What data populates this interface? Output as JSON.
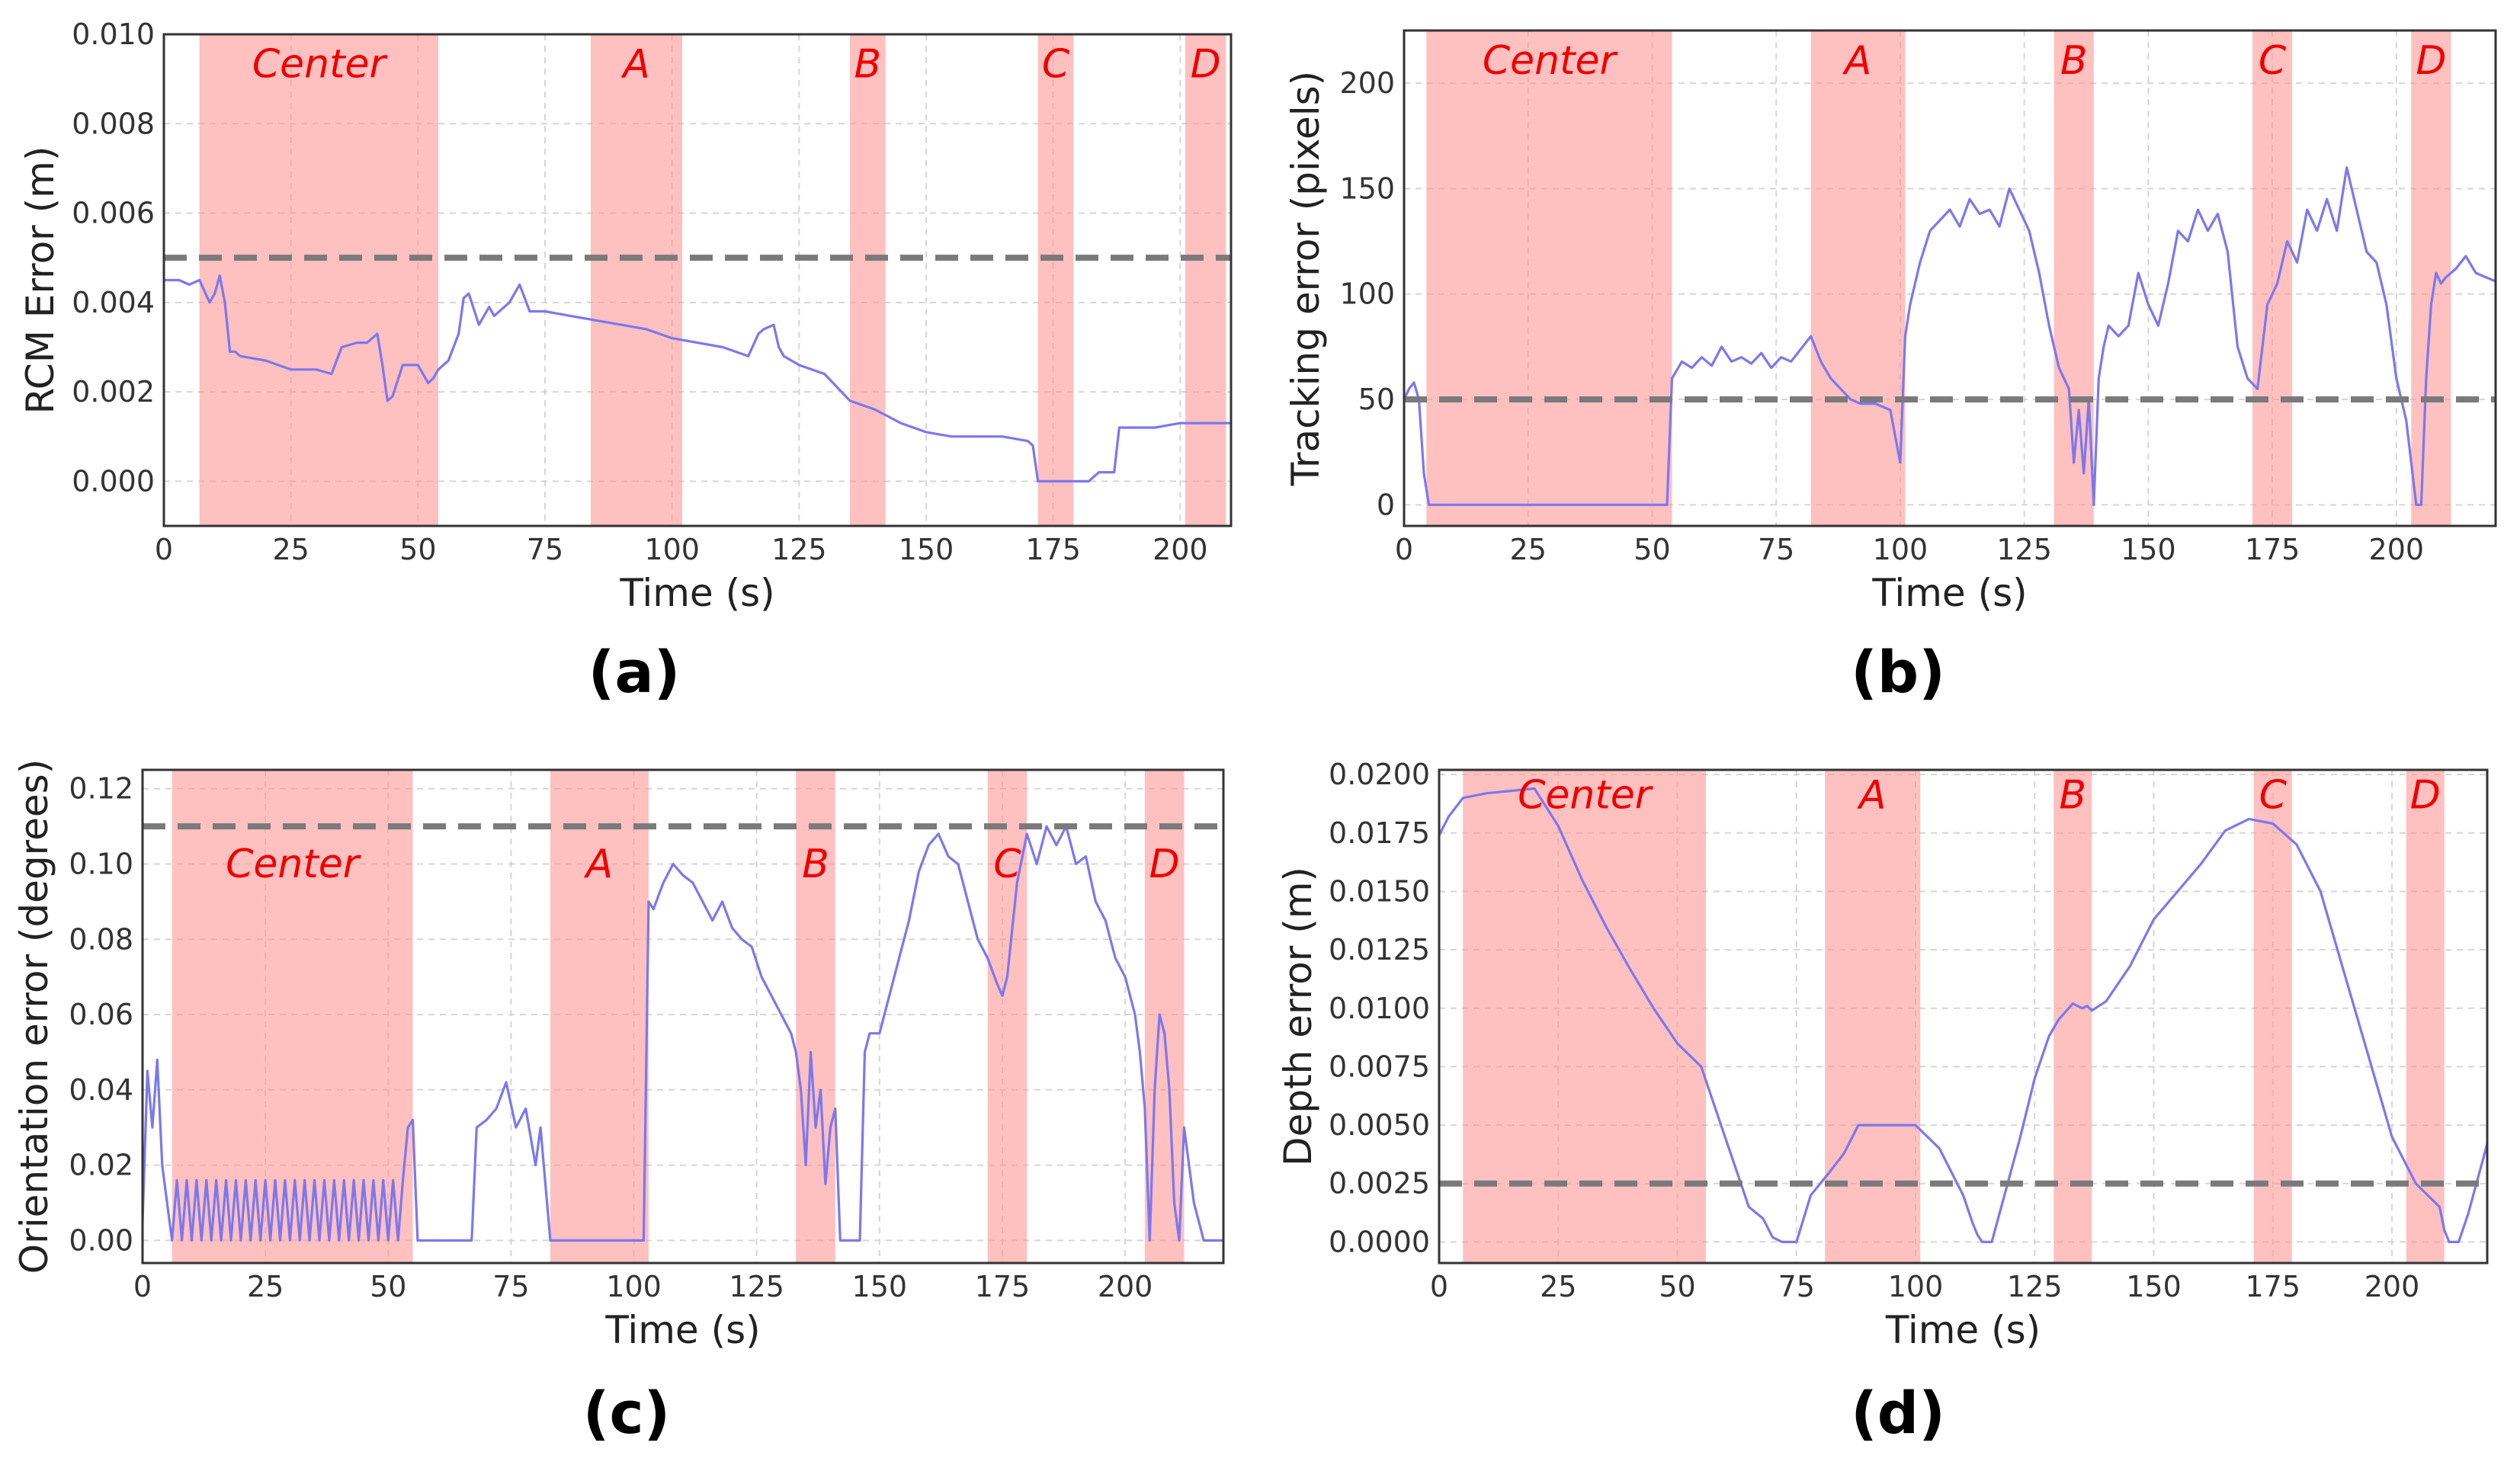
{
  "chart_data": [
    {
      "type": "line",
      "panel_label": "(a)",
      "xlabel": "Time (s)",
      "ylabel": "RCM Error (m)",
      "xlim": [
        0,
        210
      ],
      "ylim": [
        -0.001,
        0.01
      ],
      "xticks": [
        0,
        25,
        50,
        75,
        100,
        125,
        150,
        175,
        200
      ],
      "yticks": [
        0.0,
        0.002,
        0.004,
        0.006,
        0.008,
        0.01
      ],
      "tick_decimals": 3,
      "grid": true,
      "threshold": 0.005,
      "regions": [
        {
          "label": "Center",
          "start": 7,
          "end": 54
        },
        {
          "label": "A",
          "start": 84,
          "end": 102
        },
        {
          "label": "B",
          "start": 135,
          "end": 142
        },
        {
          "label": "C",
          "start": 172,
          "end": 179
        },
        {
          "label": "D",
          "start": 201,
          "end": 209
        }
      ],
      "series": [
        {
          "x": [
            0,
            3,
            5,
            7,
            9,
            10,
            11,
            12,
            13,
            14,
            15,
            20,
            25,
            30,
            33,
            35,
            38,
            40,
            42,
            43,
            44,
            45,
            47,
            50,
            52,
            53,
            54,
            56,
            58,
            59,
            60,
            62,
            63,
            64,
            65,
            68,
            70,
            72,
            75,
            80,
            85,
            90,
            95,
            100,
            105,
            110,
            115,
            117,
            118,
            120,
            121,
            122,
            125,
            130,
            135,
            140,
            145,
            150,
            155,
            160,
            165,
            170,
            171,
            172,
            175,
            178,
            179,
            182,
            184,
            186,
            187,
            188,
            195,
            200,
            205,
            210
          ],
          "y": [
            0.0045,
            0.0045,
            0.0044,
            0.0045,
            0.004,
            0.0042,
            0.0046,
            0.004,
            0.0029,
            0.0029,
            0.0028,
            0.0027,
            0.0025,
            0.0025,
            0.0024,
            0.003,
            0.0031,
            0.0031,
            0.0033,
            0.0026,
            0.0018,
            0.0019,
            0.0026,
            0.0026,
            0.0022,
            0.0023,
            0.0025,
            0.0027,
            0.0033,
            0.0041,
            0.0042,
            0.0035,
            0.0037,
            0.0039,
            0.0037,
            0.004,
            0.0044,
            0.0038,
            0.0038,
            0.0037,
            0.0036,
            0.0035,
            0.0034,
            0.0032,
            0.0031,
            0.003,
            0.0028,
            0.0033,
            0.0034,
            0.0035,
            0.003,
            0.0028,
            0.0026,
            0.0024,
            0.0018,
            0.0016,
            0.0013,
            0.0011,
            0.001,
            0.001,
            0.001,
            0.0009,
            0.0008,
            0.0,
            0.0,
            0.0,
            0.0,
            0.0,
            0.0002,
            0.0002,
            0.0002,
            0.0012,
            0.0012,
            0.0013,
            0.0013,
            0.0013
          ]
        }
      ]
    },
    {
      "type": "line",
      "panel_label": "(b)",
      "xlabel": "Time (s)",
      "ylabel": "Tracking error (pixels)",
      "xlim": [
        0,
        220
      ],
      "ylim": [
        -10,
        225
      ],
      "xticks": [
        0,
        25,
        50,
        75,
        100,
        125,
        150,
        175,
        200
      ],
      "yticks": [
        0,
        50,
        100,
        150,
        200
      ],
      "tick_decimals": 0,
      "grid": true,
      "threshold": 50,
      "regions": [
        {
          "label": "Center",
          "start": 4.5,
          "end": 54
        },
        {
          "label": "A",
          "start": 82,
          "end": 101
        },
        {
          "label": "B",
          "start": 131,
          "end": 139
        },
        {
          "label": "C",
          "start": 171,
          "end": 179
        },
        {
          "label": "D",
          "start": 203,
          "end": 211
        }
      ],
      "series": [
        {
          "x": [
            0,
            1,
            2,
            3,
            4,
            5,
            10,
            20,
            30,
            40,
            50,
            53,
            54,
            56,
            58,
            60,
            62,
            64,
            66,
            68,
            70,
            72,
            74,
            76,
            78,
            80,
            82,
            84,
            86,
            88,
            90,
            92,
            95,
            98,
            100,
            101,
            102,
            104,
            106,
            108,
            110,
            112,
            114,
            116,
            118,
            120,
            122,
            124,
            126,
            128,
            130,
            132,
            134,
            135,
            136,
            137,
            138,
            139,
            140,
            141,
            142,
            144,
            146,
            148,
            150,
            152,
            154,
            156,
            158,
            160,
            162,
            164,
            166,
            168,
            170,
            172,
            174,
            176,
            178,
            180,
            182,
            184,
            186,
            188,
            190,
            192,
            194,
            196,
            198,
            200,
            202,
            203,
            204,
            205,
            206,
            207,
            208,
            209,
            210,
            212,
            214,
            216,
            218,
            220
          ],
          "y": [
            50,
            55,
            58,
            50,
            15,
            0,
            0,
            0,
            0,
            0,
            0,
            0,
            60,
            68,
            65,
            70,
            66,
            75,
            68,
            70,
            67,
            72,
            65,
            70,
            68,
            74,
            80,
            68,
            60,
            55,
            50,
            48,
            48,
            45,
            20,
            80,
            95,
            115,
            130,
            135,
            140,
            132,
            145,
            138,
            140,
            132,
            150,
            140,
            130,
            110,
            85,
            65,
            55,
            20,
            45,
            15,
            50,
            0,
            60,
            75,
            85,
            80,
            85,
            110,
            95,
            85,
            105,
            130,
            125,
            140,
            130,
            138,
            120,
            75,
            60,
            55,
            95,
            105,
            125,
            115,
            140,
            130,
            145,
            130,
            160,
            140,
            120,
            115,
            95,
            60,
            40,
            20,
            0,
            0,
            60,
            95,
            110,
            105,
            108,
            112,
            118,
            110,
            108,
            106
          ]
        }
      ]
    },
    {
      "type": "line",
      "panel_label": "(c)",
      "xlabel": "Time (s)",
      "ylabel": "Orientation error (degrees)",
      "xlim": [
        0,
        220
      ],
      "ylim": [
        -0.006,
        0.125
      ],
      "xticks": [
        0,
        25,
        50,
        75,
        100,
        125,
        150,
        175,
        200
      ],
      "yticks": [
        0.0,
        0.02,
        0.04,
        0.06,
        0.08,
        0.1,
        0.12
      ],
      "tick_decimals": 2,
      "grid": true,
      "threshold": 0.11,
      "regions": [
        {
          "label": "Center",
          "start": 6,
          "end": 55
        },
        {
          "label": "A",
          "start": 83,
          "end": 103
        },
        {
          "label": "B",
          "start": 133,
          "end": 141
        },
        {
          "label": "C",
          "start": 172,
          "end": 180
        },
        {
          "label": "D",
          "start": 204,
          "end": 212
        }
      ],
      "series": [
        {
          "x": [
            0,
            1,
            2,
            3,
            4,
            5,
            6,
            7,
            8,
            9,
            10,
            11,
            12,
            13,
            14,
            15,
            16,
            17,
            18,
            19,
            20,
            21,
            22,
            23,
            24,
            25,
            26,
            27,
            28,
            29,
            30,
            31,
            32,
            33,
            34,
            35,
            36,
            37,
            38,
            39,
            40,
            41,
            42,
            43,
            44,
            45,
            46,
            47,
            48,
            49,
            50,
            51,
            52,
            53,
            54,
            55,
            56,
            58,
            62,
            67,
            68,
            70,
            72,
            74,
            76,
            78,
            80,
            81,
            82,
            83,
            85,
            90,
            95,
            100,
            102,
            103,
            104,
            106,
            108,
            110,
            112,
            114,
            116,
            118,
            120,
            122,
            124,
            126,
            128,
            130,
            132,
            133,
            134,
            135,
            136,
            137,
            138,
            139,
            140,
            141,
            142,
            144,
            146,
            147,
            148,
            150,
            152,
            154,
            156,
            158,
            160,
            162,
            164,
            166,
            168,
            170,
            172,
            174,
            175,
            176,
            178,
            180,
            182,
            184,
            186,
            188,
            190,
            192,
            194,
            196,
            198,
            200,
            202,
            203,
            204,
            205,
            206,
            207,
            208,
            209,
            210,
            211,
            212,
            213,
            214,
            216,
            218,
            220
          ],
          "y": [
            0.005,
            0.045,
            0.03,
            0.048,
            0.02,
            0.01,
            0.0,
            0.016,
            0.0,
            0.016,
            0.0,
            0.016,
            0.0,
            0.016,
            0.0,
            0.016,
            0.0,
            0.016,
            0.0,
            0.016,
            0.0,
            0.016,
            0.0,
            0.016,
            0.0,
            0.016,
            0.0,
            0.016,
            0.0,
            0.016,
            0.0,
            0.016,
            0.0,
            0.016,
            0.0,
            0.016,
            0.0,
            0.016,
            0.0,
            0.016,
            0.0,
            0.016,
            0.0,
            0.016,
            0.0,
            0.016,
            0.0,
            0.016,
            0.0,
            0.016,
            0.0,
            0.016,
            0.0,
            0.016,
            0.03,
            0.032,
            0.0,
            0.0,
            0.0,
            0.0,
            0.03,
            0.032,
            0.035,
            0.042,
            0.03,
            0.035,
            0.02,
            0.03,
            0.015,
            0.0,
            0.0,
            0.0,
            0.0,
            0.0,
            0.0,
            0.09,
            0.088,
            0.095,
            0.1,
            0.097,
            0.095,
            0.09,
            0.085,
            0.09,
            0.083,
            0.08,
            0.078,
            0.07,
            0.065,
            0.06,
            0.055,
            0.05,
            0.04,
            0.02,
            0.05,
            0.03,
            0.04,
            0.015,
            0.03,
            0.035,
            0.0,
            0.0,
            0.0,
            0.05,
            0.055,
            0.055,
            0.065,
            0.075,
            0.085,
            0.098,
            0.105,
            0.108,
            0.102,
            0.1,
            0.09,
            0.08,
            0.075,
            0.068,
            0.065,
            0.07,
            0.095,
            0.108,
            0.1,
            0.11,
            0.105,
            0.11,
            0.1,
            0.102,
            0.09,
            0.085,
            0.075,
            0.07,
            0.06,
            0.05,
            0.035,
            0.0,
            0.04,
            0.06,
            0.055,
            0.04,
            0.01,
            0.0,
            0.03,
            0.02,
            0.01,
            0.0,
            0.0,
            0.0
          ]
        }
      ]
    },
    {
      "type": "line",
      "panel_label": "(d)",
      "xlabel": "Time (s)",
      "ylabel": "Depth error (m)",
      "xlim": [
        0,
        220
      ],
      "ylim": [
        -0.0009,
        0.0202
      ],
      "xticks": [
        0,
        25,
        50,
        75,
        100,
        125,
        150,
        175,
        200
      ],
      "yticks": [
        0.0,
        0.0025,
        0.005,
        0.0075,
        0.01,
        0.0125,
        0.015,
        0.0175,
        0.02
      ],
      "tick_decimals": 4,
      "grid": true,
      "threshold": 0.0025,
      "regions": [
        {
          "label": "Center",
          "start": 5,
          "end": 56
        },
        {
          "label": "A",
          "start": 81,
          "end": 101
        },
        {
          "label": "B",
          "start": 129,
          "end": 137
        },
        {
          "label": "C",
          "start": 171,
          "end": 179
        },
        {
          "label": "D",
          "start": 203,
          "end": 211
        }
      ],
      "series": [
        {
          "x": [
            0,
            2,
            5,
            10,
            15,
            20,
            25,
            30,
            35,
            40,
            45,
            50,
            55,
            60,
            65,
            68,
            70,
            72,
            73,
            75,
            78,
            82,
            85,
            88,
            95,
            100,
            105,
            110,
            112,
            113,
            114,
            115,
            116,
            118,
            122,
            125,
            128,
            130,
            133,
            135,
            136,
            137,
            140,
            145,
            150,
            155,
            160,
            165,
            170,
            175,
            180,
            185,
            190,
            195,
            200,
            205,
            210,
            211,
            212,
            213,
            214,
            216,
            220
          ],
          "y": [
            0.0174,
            0.0182,
            0.019,
            0.0192,
            0.0193,
            0.0194,
            0.0178,
            0.0155,
            0.0135,
            0.0117,
            0.01,
            0.0085,
            0.0075,
            0.0045,
            0.0015,
            0.001,
            0.0002,
            0.0,
            0.0,
            0.0,
            0.002,
            0.003,
            0.0038,
            0.005,
            0.005,
            0.005,
            0.004,
            0.002,
            0.0008,
            0.0003,
            0.0,
            0.0,
            0.0,
            0.0015,
            0.0045,
            0.007,
            0.0088,
            0.0095,
            0.0102,
            0.01,
            0.0101,
            0.0099,
            0.0103,
            0.0118,
            0.0138,
            0.015,
            0.0162,
            0.0176,
            0.0181,
            0.0179,
            0.017,
            0.015,
            0.0115,
            0.008,
            0.0045,
            0.0025,
            0.0015,
            0.0005,
            0.0,
            0.0,
            0.0,
            0.0012,
            0.0042
          ]
        }
      ]
    }
  ],
  "colors": {
    "series": "#7b78ee",
    "region": "#ff9999",
    "threshold": "#7a7a7a",
    "region_label": "#ee0000"
  }
}
